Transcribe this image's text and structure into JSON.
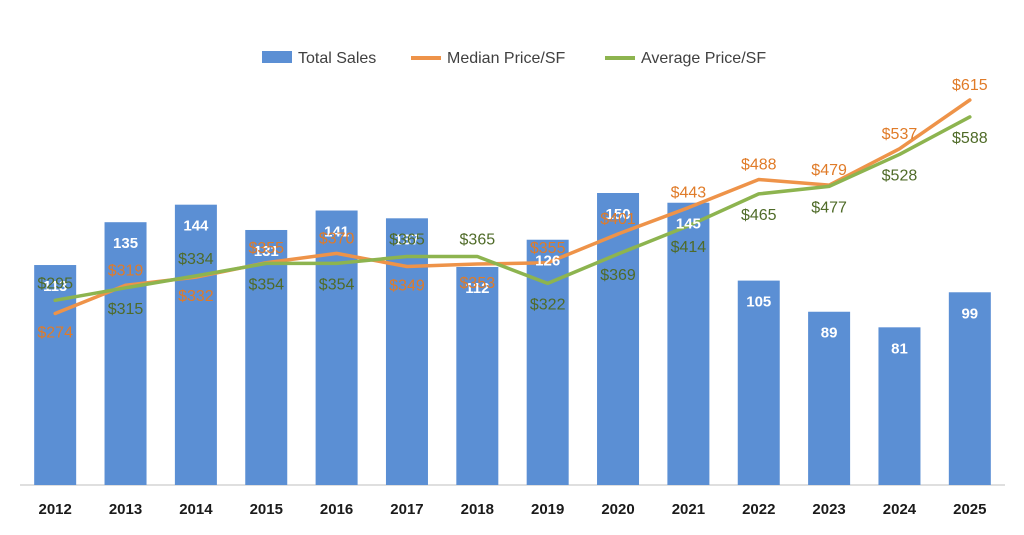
{
  "chart_data": {
    "type": "bar",
    "categories": [
      "2012",
      "2013",
      "2014",
      "2015",
      "2016",
      "2017",
      "2018",
      "2019",
      "2020",
      "2021",
      "2022",
      "2023",
      "2024",
      "2025"
    ],
    "series": [
      {
        "name": "Total Sales",
        "type": "bar",
        "color": "#5b8fd4",
        "values": [
          113,
          135,
          144,
          131,
          141,
          137,
          112,
          126,
          150,
          145,
          105,
          89,
          81,
          99
        ],
        "labels": [
          "113",
          "135",
          "144",
          "131",
          "141",
          "137",
          "112",
          "126",
          "150",
          "145",
          "105",
          "89",
          "81",
          "99"
        ]
      },
      {
        "name": "Median Price/SF",
        "type": "line",
        "color": "#ee9349",
        "label_color": "#e07b28",
        "values": [
          274,
          319,
          332,
          355,
          370,
          349,
          353,
          355,
          401,
          443,
          488,
          479,
          537,
          615
        ],
        "labels": [
          "$274",
          "$319",
          "$332",
          "$355",
          "$370",
          "$349",
          "$353",
          "$355",
          "$401",
          "$443",
          "$488",
          "$479",
          "$537",
          "$615"
        ]
      },
      {
        "name": "Average Price/SF",
        "type": "line",
        "color": "#8db44f",
        "label_color": "#4f6b28",
        "values": [
          295,
          315,
          334,
          354,
          354,
          365,
          365,
          322,
          369,
          414,
          465,
          477,
          528,
          588
        ],
        "labels": [
          "$295",
          "$315",
          "$334",
          "$354",
          "$354",
          "$365",
          "$365",
          "$322",
          "$369",
          "$414",
          "$465",
          "$477",
          "$528",
          "$588"
        ]
      }
    ],
    "bar_axis_range": [
      0,
      165
    ],
    "price_axis_range": [
      0,
      715
    ],
    "legend_position": "top-center",
    "grid": false
  }
}
